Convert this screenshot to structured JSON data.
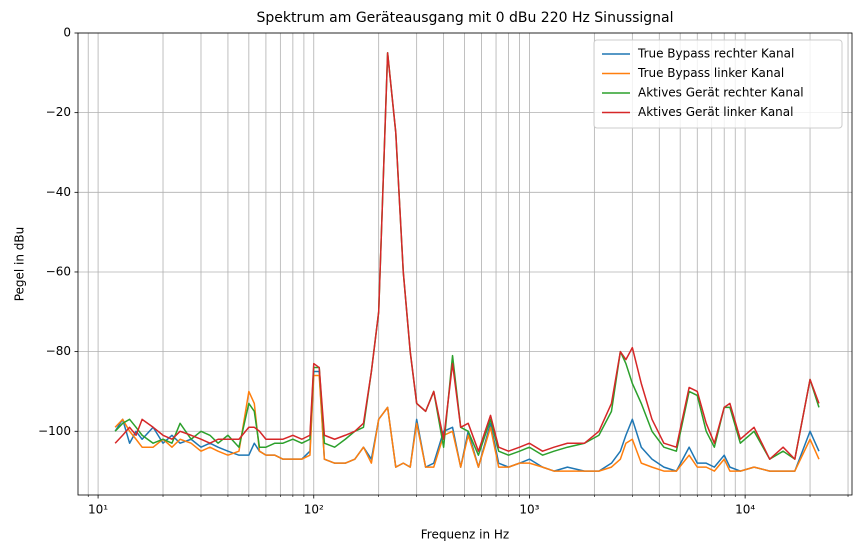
{
  "chart_data": {
    "type": "line",
    "title": "Spektrum am Geräteausgang mit 0 dBu 220 Hz Sinussignal",
    "x_label": "Frequenz in Hz",
    "y_label": "Pegel in dBu",
    "x_scale": "log",
    "grid": true,
    "legend_position": "upper right",
    "xlim": [
      8.07,
      31300
    ],
    "ylim": [
      -116,
      0
    ],
    "xticks": [
      {
        "value": 10,
        "label": "10¹"
      },
      {
        "value": 100,
        "label": "10²"
      },
      {
        "value": 1000,
        "label": "10³"
      },
      {
        "value": 10000,
        "label": "10⁴"
      }
    ],
    "xminorticks": [
      9,
      20,
      30,
      40,
      50,
      60,
      70,
      80,
      90,
      200,
      300,
      400,
      500,
      600,
      700,
      800,
      900,
      2000,
      3000,
      4000,
      5000,
      6000,
      7000,
      8000,
      9000,
      20000,
      30000
    ],
    "yticks": [
      0,
      {
        "value": -20,
        "label": "−20"
      },
      {
        "value": -40,
        "label": "−40"
      },
      {
        "value": -60,
        "label": "−60"
      },
      {
        "value": -80,
        "label": "−80"
      },
      {
        "value": -100,
        "label": "−100"
      }
    ],
    "x": [
      12,
      13,
      14,
      15,
      16,
      18,
      20,
      22,
      24,
      27,
      30,
      33,
      36,
      40,
      45,
      50,
      53,
      56,
      60,
      66,
      72,
      80,
      88,
      96,
      100,
      106,
      112,
      125,
      140,
      155,
      170,
      185,
      200,
      220,
      240,
      260,
      280,
      300,
      330,
      360,
      400,
      440,
      480,
      520,
      580,
      660,
      720,
      800,
      900,
      1000,
      1150,
      1300,
      1500,
      1800,
      2100,
      2400,
      2640,
      2800,
      3000,
      3300,
      3700,
      4200,
      4800,
      5500,
      6000,
      6600,
      7200,
      8000,
      8500,
      9500,
      11000,
      13000,
      15000,
      17000,
      20000,
      22000
    ],
    "series": [
      {
        "name": "True Bypass rechter Kanal",
        "color": "#1f77b4",
        "values": [
          -100,
          -97,
          -103,
          -100,
          -102,
          -99,
          -103,
          -101,
          -103,
          -102,
          -104,
          -103,
          -104,
          -105,
          -106,
          -106,
          -103,
          -105,
          -106,
          -106,
          -107,
          -107,
          -107,
          -105,
          -85,
          -85,
          -107,
          -108,
          -108,
          -107,
          -104,
          -107,
          -97,
          -94,
          -109,
          -108,
          -109,
          -97,
          -109,
          -108,
          -100,
          -99,
          -109,
          -100,
          -109,
          -98,
          -108,
          -109,
          -108,
          -107,
          -109,
          -110,
          -109,
          -110,
          -110,
          -108,
          -105,
          -101,
          -97,
          -104,
          -107,
          -109,
          -110,
          -104,
          -108,
          -108,
          -109,
          -106,
          -109,
          -110,
          -109,
          -110,
          -110,
          -110,
          -100,
          -105
        ]
      },
      {
        "name": "True Bypass linker Kanal",
        "color": "#ff7f0e",
        "values": [
          -99,
          -97,
          -100,
          -102,
          -104,
          -104,
          -102,
          -104,
          -102,
          -103,
          -105,
          -104,
          -105,
          -106,
          -105,
          -90,
          -93,
          -105,
          -106,
          -106,
          -107,
          -107,
          -107,
          -106,
          -86,
          -86,
          -107,
          -108,
          -108,
          -107,
          -104,
          -108,
          -97,
          -94,
          -109,
          -108,
          -109,
          -98,
          -109,
          -109,
          -101,
          -100,
          -109,
          -101,
          -109,
          -99,
          -109,
          -109,
          -108,
          -108,
          -109,
          -110,
          -110,
          -110,
          -110,
          -109,
          -107,
          -103,
          -102,
          -108,
          -109,
          -110,
          -110,
          -106,
          -109,
          -109,
          -110,
          -107,
          -110,
          -110,
          -109,
          -110,
          -110,
          -110,
          -102,
          -107
        ]
      },
      {
        "name": "Aktives Gerät rechter Kanal",
        "color": "#2ca02c",
        "values": [
          -100,
          -98,
          -97,
          -99,
          -101,
          -103,
          -102,
          -103,
          -98,
          -102,
          -100,
          -101,
          -103,
          -101,
          -104,
          -93,
          -95,
          -104,
          -104,
          -103,
          -103,
          -102,
          -103,
          -102,
          -84,
          -84,
          -103,
          -104,
          -102,
          -100,
          -99,
          -85,
          -70,
          -5,
          -25,
          -60,
          -80,
          -93,
          -95,
          -90,
          -104,
          -81,
          -99,
          -100,
          -106,
          -97,
          -105,
          -106,
          -105,
          -104,
          -106,
          -105,
          -104,
          -103,
          -101,
          -95,
          -80,
          -83,
          -88,
          -93,
          -100,
          -104,
          -105,
          -90,
          -91,
          -100,
          -104,
          -94,
          -94,
          -103,
          -100,
          -107,
          -105,
          -107,
          -87,
          -94
        ]
      },
      {
        "name": "Aktives Gerät linker Kanal",
        "color": "#d62728",
        "values": [
          -103,
          -101,
          -99,
          -101,
          -97,
          -99,
          -101,
          -102,
          -100,
          -101,
          -102,
          -103,
          -102,
          -102,
          -102,
          -99,
          -99,
          -100,
          -102,
          -102,
          -102,
          -101,
          -102,
          -101,
          -83,
          -84,
          -101,
          -102,
          -101,
          -100,
          -98,
          -85,
          -70,
          -5,
          -25,
          -60,
          -80,
          -93,
          -95,
          -90,
          -102,
          -83,
          -99,
          -98,
          -105,
          -96,
          -104,
          -105,
          -104,
          -103,
          -105,
          -104,
          -103,
          -103,
          -100,
          -93,
          -80,
          -82,
          -79,
          -88,
          -97,
          -103,
          -104,
          -89,
          -90,
          -98,
          -103,
          -94,
          -93,
          -102,
          -99,
          -107,
          -104,
          -107,
          -87,
          -93
        ]
      }
    ]
  }
}
